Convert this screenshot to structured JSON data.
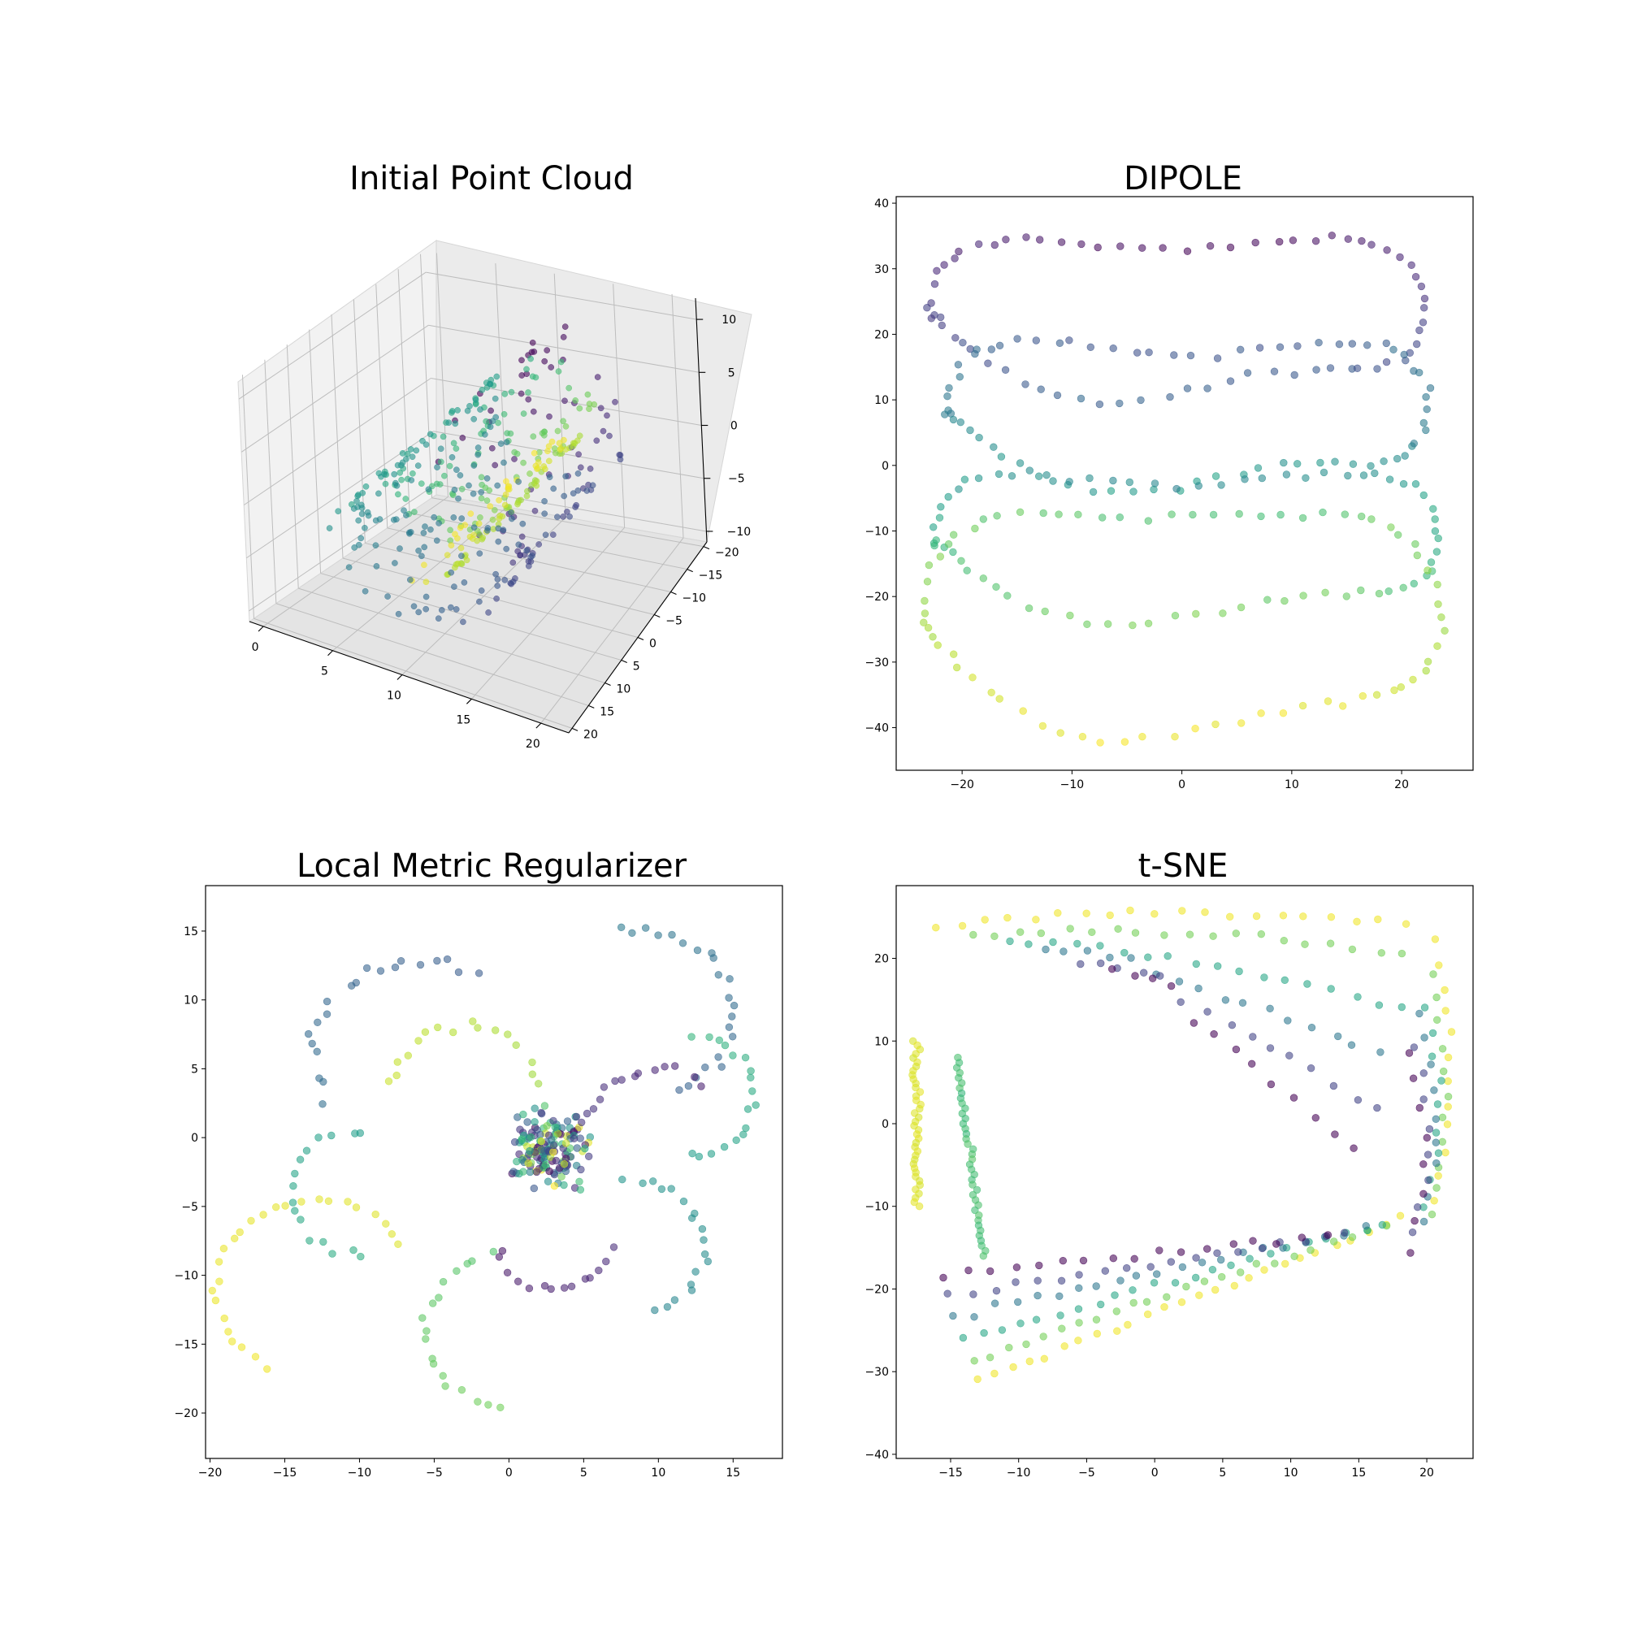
{
  "chart_data": [
    {
      "id": "initial",
      "type": "scatter3d",
      "title": "Initial Point Cloud",
      "colormap": "viridis",
      "xlim": [
        -1,
        22
      ],
      "ylim": [
        -21,
        21
      ],
      "zlim": [
        -11,
        12
      ],
      "xticks": [
        0,
        5,
        10,
        15,
        20
      ],
      "yticks": [
        -20,
        -15,
        -10,
        -5,
        0,
        5,
        10,
        15,
        20
      ],
      "zticks": [
        -10,
        -5,
        0,
        5,
        10
      ],
      "xtick_labels": [
        "0",
        "5",
        "10",
        "15",
        "20"
      ],
      "ytick_labels": [
        "−20",
        "−15",
        "−10",
        "−5",
        "0",
        "5",
        "10",
        "15",
        "20"
      ],
      "ztick_labels": [
        "−10",
        "−5",
        "0",
        "5",
        "10"
      ],
      "grid": true,
      "shape": "helix (swiss-roll-like) point cloud coloured along its parameter"
    },
    {
      "id": "dipole",
      "type": "scatter",
      "title": "DIPOLE",
      "colormap": "viridis",
      "xlim": [
        -26,
        26.5
      ],
      "ylim": [
        -46.5,
        41
      ],
      "xticks": [
        -20,
        -10,
        0,
        10,
        20
      ],
      "yticks": [
        -40,
        -30,
        -20,
        -10,
        0,
        10,
        20,
        30,
        40
      ],
      "xtick_labels": [
        "−20",
        "−10",
        "0",
        "10",
        "20"
      ],
      "ytick_labels": [
        "−40",
        "−30",
        "−20",
        "−10",
        "0",
        "10",
        "20",
        "30",
        "40"
      ],
      "grid": false,
      "shape": "four stacked horizontal lobes (purple top, yellow bottom)"
    },
    {
      "id": "lmr",
      "type": "scatter",
      "title": "Local Metric Regularizer",
      "colormap": "viridis",
      "xlim": [
        -20.3,
        18.3
      ],
      "ylim": [
        -23.3,
        18.3
      ],
      "xticks": [
        -20,
        -15,
        -10,
        -5,
        0,
        5,
        10,
        15
      ],
      "yticks": [
        -20,
        -15,
        -10,
        -5,
        0,
        5,
        10,
        15
      ],
      "xtick_labels": [
        "−20",
        "−15",
        "−10",
        "−5",
        "0",
        "5",
        "10",
        "15"
      ],
      "ytick_labels": [
        "−20",
        "−15",
        "−10",
        "−5",
        "0",
        "5",
        "10",
        "15"
      ],
      "grid": false,
      "shape": "dense central cluster with loops radiating outward"
    },
    {
      "id": "tsne",
      "type": "scatter",
      "title": "t-SNE",
      "colormap": "viridis",
      "xlim": [
        -19,
        23.4
      ],
      "ylim": [
        -40.5,
        28.8
      ],
      "xticks": [
        -15,
        -10,
        -5,
        0,
        5,
        10,
        15,
        20
      ],
      "yticks": [
        -40,
        -30,
        -20,
        -10,
        0,
        10,
        20
      ],
      "xtick_labels": [
        "−15",
        "−10",
        "−5",
        "0",
        "5",
        "10",
        "15",
        "20"
      ],
      "ytick_labels": [
        "−40",
        "−30",
        "−20",
        "−10",
        "0",
        "10",
        "20"
      ],
      "grid": false,
      "shape": "concentric nested bands curling into a hook at lower-left"
    }
  ]
}
